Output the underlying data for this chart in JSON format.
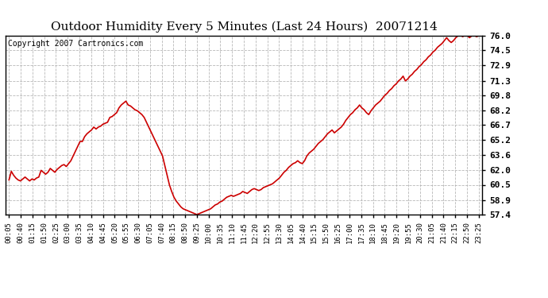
{
  "title": "Outdoor Humidity Every 5 Minutes (Last 24 Hours)  20071214",
  "copyright": "Copyright 2007 Cartronics.com",
  "line_color": "#cc0000",
  "background_color": "#ffffff",
  "grid_color": "#b0b0b0",
  "title_fontsize": 11,
  "copyright_fontsize": 7,
  "ylabel_fontsize": 8,
  "xlabel_fontsize": 6.5,
  "ylim": [
    57.4,
    76.0
  ],
  "yticks": [
    57.4,
    58.9,
    60.5,
    62.0,
    63.6,
    65.2,
    66.7,
    68.2,
    69.8,
    71.3,
    72.9,
    74.5,
    76.0
  ],
  "xtick_labels": [
    "00:05",
    "00:40",
    "01:15",
    "01:50",
    "02:25",
    "03:00",
    "03:35",
    "04:10",
    "04:45",
    "05:20",
    "05:55",
    "06:30",
    "07:05",
    "07:40",
    "08:15",
    "08:50",
    "09:25",
    "10:00",
    "10:35",
    "11:10",
    "11:45",
    "12:20",
    "12:55",
    "13:30",
    "14:05",
    "14:40",
    "15:15",
    "15:50",
    "16:25",
    "17:00",
    "17:35",
    "18:10",
    "18:45",
    "19:20",
    "19:55",
    "20:30",
    "21:05",
    "21:40",
    "22:15",
    "22:50",
    "23:25"
  ],
  "humidity_values": [
    61.0,
    61.9,
    61.5,
    61.2,
    61.0,
    60.9,
    61.1,
    61.3,
    61.1,
    60.9,
    61.1,
    61.0,
    61.2,
    61.3,
    62.0,
    61.8,
    61.6,
    61.8,
    62.2,
    62.0,
    61.8,
    62.1,
    62.3,
    62.5,
    62.6,
    62.4,
    62.7,
    63.0,
    63.5,
    64.0,
    64.5,
    65.0,
    65.0,
    65.5,
    65.8,
    66.0,
    66.2,
    66.5,
    66.3,
    66.5,
    66.6,
    66.8,
    66.9,
    67.0,
    67.5,
    67.6,
    67.8,
    68.0,
    68.5,
    68.8,
    69.0,
    69.2,
    68.8,
    68.7,
    68.5,
    68.3,
    68.2,
    68.0,
    67.8,
    67.5,
    67.0,
    66.5,
    66.0,
    65.5,
    65.0,
    64.5,
    64.0,
    63.5,
    62.5,
    61.5,
    60.5,
    59.8,
    59.2,
    58.8,
    58.5,
    58.2,
    58.0,
    57.9,
    57.8,
    57.7,
    57.6,
    57.5,
    57.4,
    57.5,
    57.6,
    57.7,
    57.8,
    57.9,
    58.0,
    58.2,
    58.4,
    58.5,
    58.7,
    58.8,
    59.0,
    59.2,
    59.3,
    59.4,
    59.3,
    59.4,
    59.5,
    59.6,
    59.8,
    59.7,
    59.6,
    59.8,
    60.0,
    60.1,
    60.0,
    59.9,
    60.0,
    60.2,
    60.3,
    60.4,
    60.5,
    60.6,
    60.8,
    61.0,
    61.2,
    61.5,
    61.8,
    62.0,
    62.3,
    62.5,
    62.7,
    62.8,
    63.0,
    62.8,
    62.7,
    63.0,
    63.5,
    63.8,
    64.0,
    64.2,
    64.5,
    64.8,
    65.0,
    65.2,
    65.5,
    65.8,
    66.0,
    66.2,
    65.9,
    66.1,
    66.3,
    66.5,
    66.8,
    67.2,
    67.5,
    67.8,
    68.0,
    68.3,
    68.5,
    68.8,
    68.5,
    68.3,
    68.0,
    67.8,
    68.2,
    68.5,
    68.8,
    69.0,
    69.2,
    69.5,
    69.8,
    70.0,
    70.3,
    70.5,
    70.8,
    71.0,
    71.3,
    71.5,
    71.8,
    71.3,
    71.5,
    71.8,
    72.0,
    72.3,
    72.5,
    72.8,
    73.0,
    73.3,
    73.5,
    73.8,
    74.0,
    74.3,
    74.5,
    74.8,
    75.0,
    75.2,
    75.5,
    75.8,
    75.5,
    75.3,
    75.5,
    75.8,
    76.0,
    76.1,
    75.9,
    76.1,
    76.0,
    75.8,
    76.0,
    76.1,
    75.9,
    76.0
  ]
}
